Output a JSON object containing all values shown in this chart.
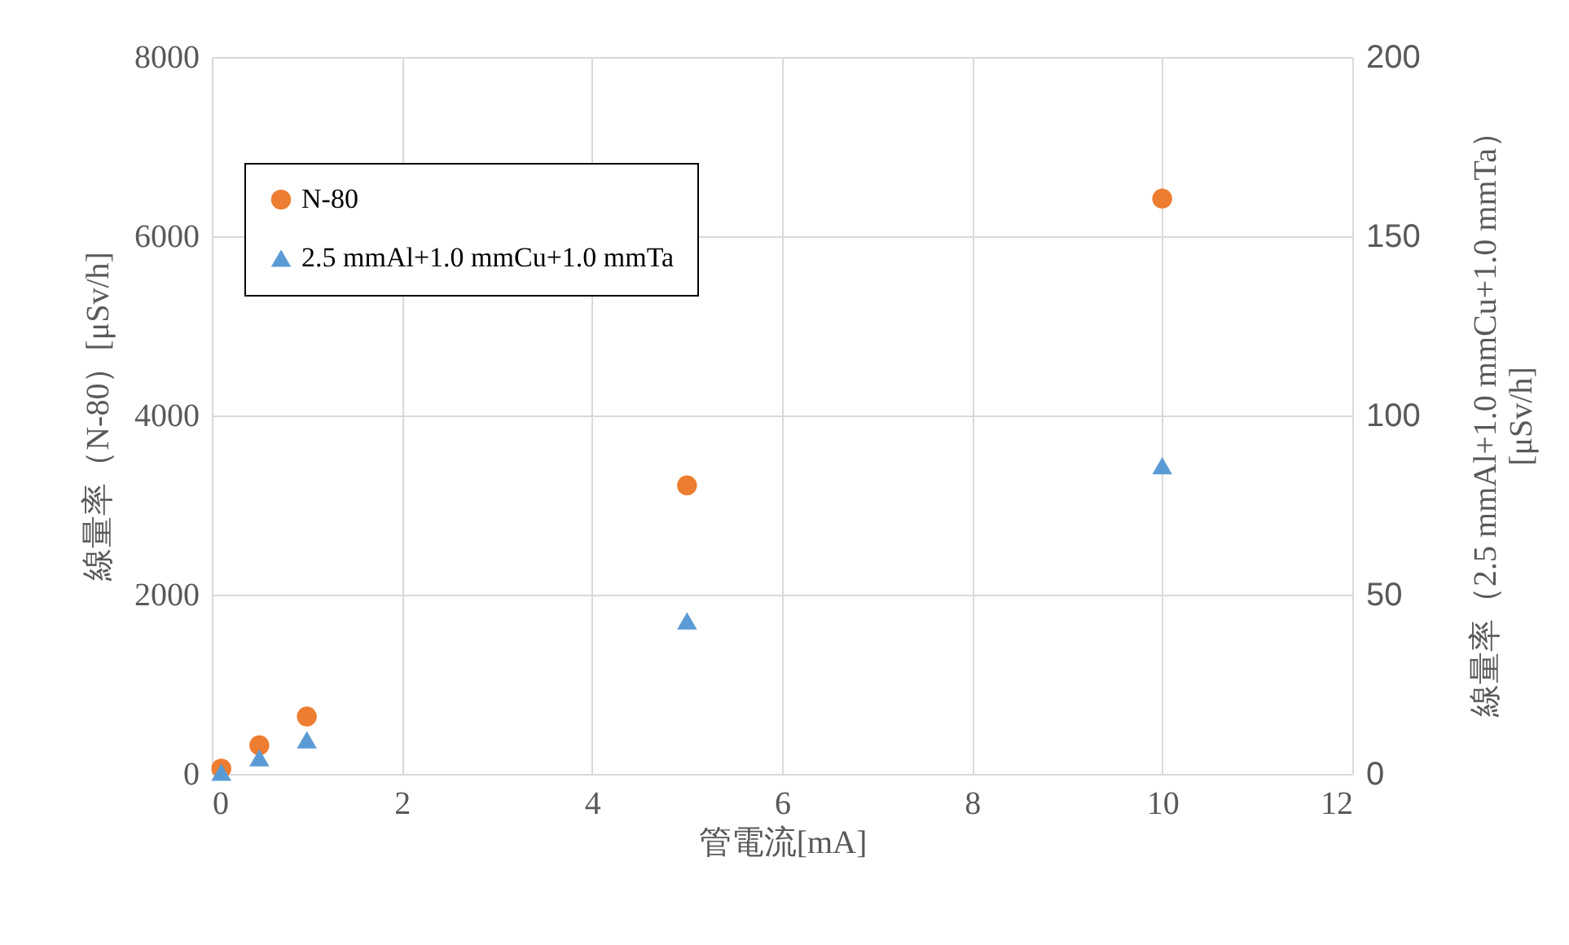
{
  "chart_data": {
    "type": "scatter",
    "xlabel": "管電流[mA]",
    "ylabel": "線量率（N-80）[μSv/h]",
    "y2label": "線量率（2.5 mmAl+1.0 mmCu+1.0 mmTa）\n[μSv/h]",
    "x": [
      0.1,
      0.5,
      1,
      5,
      10
    ],
    "series": [
      {
        "name": "N-80",
        "color": "#ed7d31",
        "marker": "circle",
        "values": [
          60,
          320,
          640,
          3220,
          6420
        ]
      },
      {
        "name": "2.5 mmAl+1.0 mmCu+1.0 mmTa",
        "color": "#5b9bd5",
        "marker": "triangle",
        "axis": "y2",
        "values": [
          0.5,
          4.5,
          9.5,
          42.7,
          86
        ]
      }
    ],
    "xlim": [
      0,
      12
    ],
    "xticks": [
      0,
      2,
      4,
      6,
      8,
      10,
      12
    ],
    "ylim": [
      0,
      8000
    ],
    "yticks": [
      0,
      2000,
      4000,
      6000,
      8000
    ],
    "y2lim": [
      0,
      200
    ],
    "y2ticks": [
      0,
      50,
      100,
      150,
      200
    ],
    "grid": true,
    "legend": "top left"
  }
}
